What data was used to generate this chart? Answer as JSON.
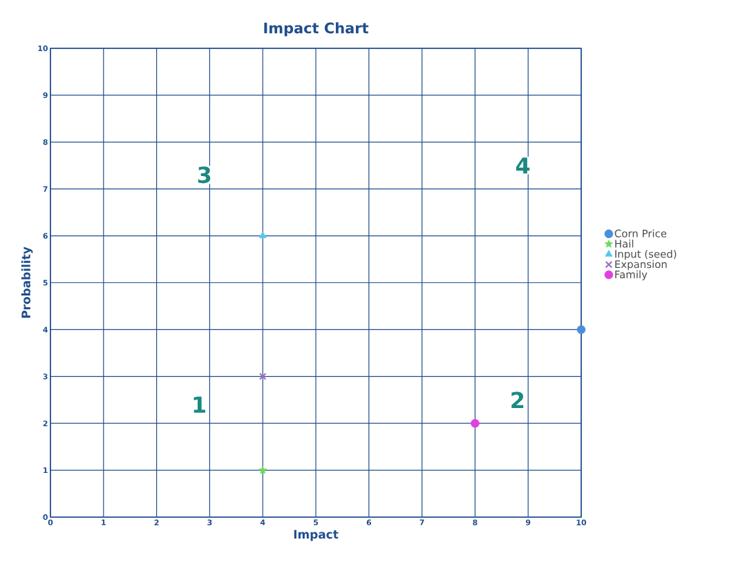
{
  "chart_data": {
    "type": "scatter",
    "title": "Impact Chart",
    "xlabel": "Impact",
    "ylabel": "Probability",
    "xlim": [
      0,
      10
    ],
    "ylim": [
      0,
      10
    ],
    "xticks": [
      0,
      1,
      2,
      3,
      4,
      5,
      6,
      7,
      8,
      9,
      10
    ],
    "yticks": [
      0,
      1,
      2,
      3,
      4,
      5,
      6,
      7,
      8,
      9,
      10
    ],
    "grid": true,
    "legend": "right",
    "series": [
      {
        "name": "Corn Price",
        "color": "#4a8fdc",
        "marker": "circle",
        "x": [
          10
        ],
        "values": [
          4
        ]
      },
      {
        "name": "Hail",
        "color": "#66dd55",
        "marker": "star",
        "x": [
          4
        ],
        "values": [
          1
        ]
      },
      {
        "name": "Input (seed)",
        "color": "#55c8e8",
        "marker": "triangle",
        "x": [
          4
        ],
        "values": [
          6
        ]
      },
      {
        "name": "Expansion",
        "color": "#9a70c0",
        "marker": "cross",
        "x": [
          4
        ],
        "values": [
          3
        ]
      },
      {
        "name": "Family",
        "color": "#e040e0",
        "marker": "circle",
        "x": [
          8
        ],
        "values": [
          2
        ]
      }
    ],
    "annotations": [
      "1",
      "2",
      "3",
      "4"
    ]
  }
}
